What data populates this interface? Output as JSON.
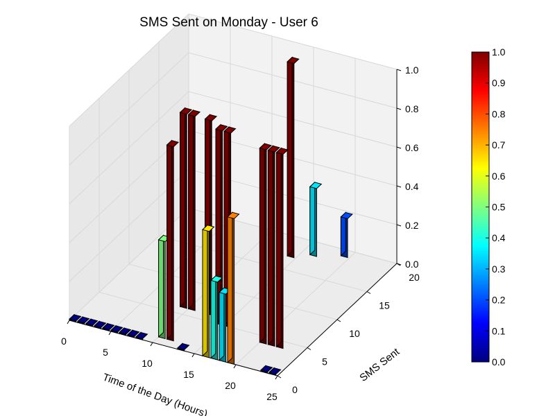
{
  "chart_data": {
    "type": "bar3d",
    "title": "SMS Sent on Monday - User 6",
    "xlabel": "Time of the Day (Hours)",
    "ylabel": "SMS Sent",
    "zlabel": "",
    "xlim": [
      0,
      25
    ],
    "ylim": [
      0,
      20
    ],
    "zlim": [
      0,
      1
    ],
    "x_ticks": [
      "0",
      "5",
      "10",
      "15",
      "20",
      "25"
    ],
    "y_ticks": [
      "0",
      "5",
      "10",
      "15",
      "20"
    ],
    "z_ticks": [
      "0.0",
      "0.2",
      "0.4",
      "0.6",
      "0.8",
      "1.0"
    ],
    "colormap": "jet",
    "colorbar": {
      "range": [
        0,
        1
      ],
      "ticks": [
        "0.0",
        "0.1",
        "0.2",
        "0.3",
        "0.4",
        "0.5",
        "0.6",
        "0.7",
        "0.8",
        "0.9",
        "1.0"
      ]
    },
    "grid": true,
    "bars": [
      {
        "x": 0,
        "y": 0,
        "z": 0.0
      },
      {
        "x": 1,
        "y": 0,
        "z": 0.0
      },
      {
        "x": 2,
        "y": 0,
        "z": 0.0
      },
      {
        "x": 3,
        "y": 0,
        "z": 0.0
      },
      {
        "x": 4,
        "y": 0,
        "z": 0.0
      },
      {
        "x": 5,
        "y": 0,
        "z": 0.0
      },
      {
        "x": 6,
        "y": 0,
        "z": 0.0
      },
      {
        "x": 7,
        "y": 0,
        "z": 0.0
      },
      {
        "x": 8,
        "y": 0,
        "z": 0.0
      },
      {
        "x": 9,
        "y": 6,
        "z": 1.0
      },
      {
        "x": 10,
        "y": 6,
        "z": 1.0
      },
      {
        "x": 10,
        "y": 1,
        "z": 0.5
      },
      {
        "x": 11,
        "y": 1,
        "z": 1.0
      },
      {
        "x": 12,
        "y": 6,
        "z": 1.0
      },
      {
        "x": 13,
        "y": 0,
        "z": 0.0
      },
      {
        "x": 14,
        "y": 5,
        "z": 1.0
      },
      {
        "x": 15,
        "y": 5,
        "z": 1.0
      },
      {
        "x": 16,
        "y": 0,
        "z": 0.65
      },
      {
        "x": 17,
        "y": 0,
        "z": 0.4
      },
      {
        "x": 18,
        "y": 0,
        "z": 0.35
      },
      {
        "x": 19,
        "y": 0,
        "z": 0.75
      },
      {
        "x": 20,
        "y": 4,
        "z": 1.0
      },
      {
        "x": 21,
        "y": 4,
        "z": 1.0
      },
      {
        "x": 22,
        "y": 4,
        "z": 1.0
      },
      {
        "x": 23,
        "y": 0,
        "z": 0.0
      },
      {
        "x": 24,
        "y": 0,
        "z": 0.0
      },
      {
        "x": 14,
        "y": 17,
        "z": 1.0
      },
      {
        "x": 16,
        "y": 18,
        "z": 0.35
      },
      {
        "x": 19,
        "y": 19,
        "z": 0.2
      }
    ]
  }
}
